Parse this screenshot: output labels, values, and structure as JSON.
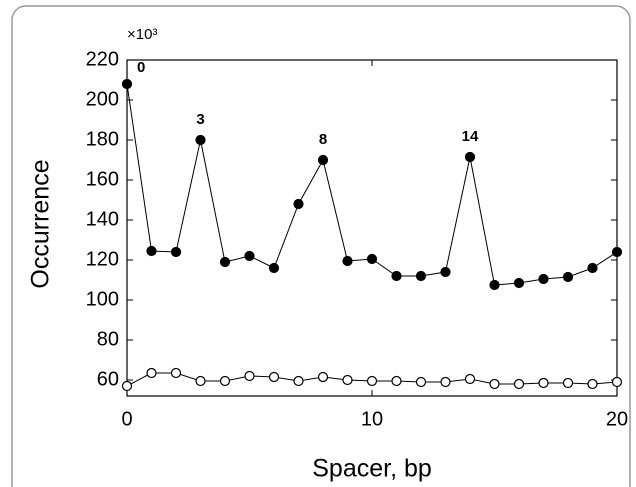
{
  "chart_data": {
    "type": "line",
    "y_multiplier": "×10³",
    "xlabel": "Spacer, bp",
    "ylabel": "Occurrence",
    "x": [
      0,
      1,
      2,
      3,
      4,
      5,
      6,
      7,
      8,
      9,
      10,
      11,
      12,
      13,
      14,
      15,
      16,
      17,
      18,
      19,
      20
    ],
    "series": [
      {
        "color": "#000000",
        "marker_fill": "#000000",
        "values": [
          208,
          124.5,
          124,
          180,
          119,
          122,
          116,
          148,
          170,
          119.5,
          120.5,
          112,
          112,
          114,
          171.5,
          107.5,
          108.5,
          110.5,
          111.5,
          116,
          124
        ]
      },
      {
        "color": "#000000",
        "marker_fill": "#ffffff",
        "values": [
          57,
          63.5,
          63.5,
          59.5,
          59.5,
          62,
          61.5,
          59.5,
          61.5,
          60,
          59.5,
          59.5,
          59,
          59,
          60.5,
          58,
          58,
          58.5,
          58.5,
          58,
          59
        ]
      }
    ],
    "annotations": [
      {
        "text": "0",
        "x": 0
      },
      {
        "text": "3",
        "x": 3
      },
      {
        "text": "8",
        "x": 8
      },
      {
        "text": "14",
        "x": 14
      }
    ],
    "xlim": [
      0,
      20
    ],
    "xticks": [
      0,
      10,
      20
    ],
    "ylim": [
      52,
      220
    ],
    "yticks": [
      60,
      80,
      100,
      120,
      140,
      160,
      180,
      200,
      220
    ]
  }
}
